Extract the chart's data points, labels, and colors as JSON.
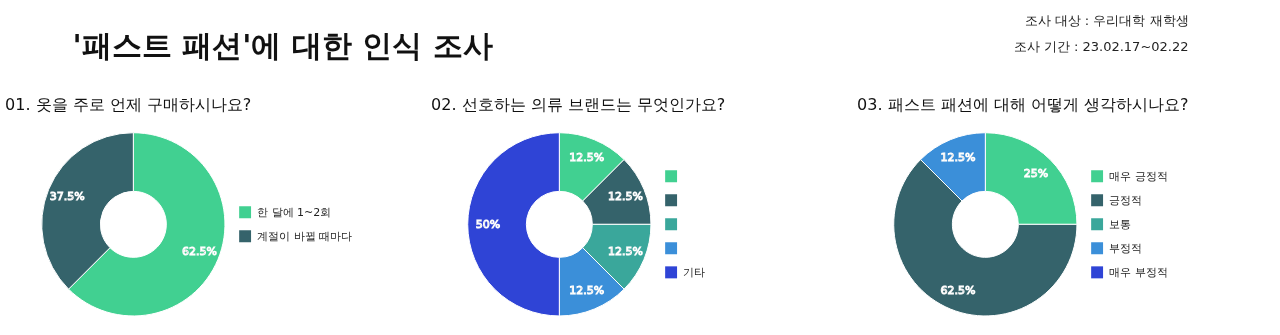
{
  "chart_data": [
    {
      "type": "other",
      "title": "'패스트 패션'에 대한 인식 조사",
      "annotations": [
        "조사 대상 : 우리대학 재학생",
        "조사 기간 : 23.02.17~02.22"
      ]
    },
    {
      "type": "donut",
      "title": "01. 옷을 주로 언제 구매하시나요?",
      "categories": [
        "한 달에 1~2회",
        "계절이 바뀔 때마다"
      ],
      "values": [
        62.5,
        37.5
      ],
      "colors": [
        "#41d091",
        "#35636b"
      ],
      "value_labels": [
        "62.5%",
        "37.5%"
      ],
      "legend": "right"
    },
    {
      "type": "donut",
      "title": "02. 선호하는 의류 브랜드는 무엇인가요?",
      "categories": [
        null,
        null,
        null,
        null,
        "기타"
      ],
      "values": [
        12.5,
        12.5,
        12.5,
        12.5,
        50
      ],
      "colors": [
        "#41d091",
        "#35636b",
        "#3aa79b",
        "#3b8fd9",
        "#2f44d6"
      ],
      "value_labels": [
        "12.5%",
        "12.5%",
        "12.5%",
        "12.5%",
        "50%"
      ],
      "legend": "right"
    },
    {
      "type": "donut",
      "title": "03. 패스트 패션에 대해 어떻게 생각하시나요?",
      "categories": [
        "매우 긍정적",
        "긍정적",
        "보통",
        "부정적",
        "매우 부정적"
      ],
      "values": [
        25,
        62.5,
        0,
        12.5,
        0
      ],
      "colors": [
        "#41d091",
        "#35636b",
        "#3aa79b",
        "#3b8fd9",
        "#2f44d6"
      ],
      "value_labels": [
        "25%",
        "62.5%",
        null,
        "12.5%",
        null
      ],
      "legend": "right"
    }
  ]
}
